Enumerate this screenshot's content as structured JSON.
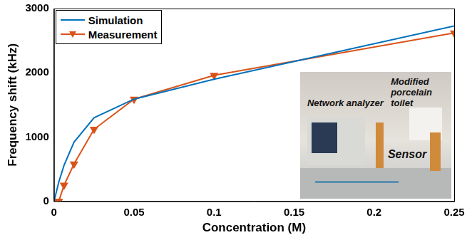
{
  "chart_data": {
    "type": "line",
    "x_label": "Concentration (M)",
    "y_label": "Frequency shift (kHz)",
    "x": [
      0,
      0.003,
      0.00625,
      0.0125,
      0.025,
      0.05,
      0.1,
      0.25
    ],
    "series": [
      {
        "name": "Simulation",
        "color": "#0072bd",
        "marker": "none",
        "line_style": "solid",
        "values": [
          0,
          300,
          560,
          920,
          1300,
          1590,
          1900,
          2730
        ]
      },
      {
        "name": "Measurement",
        "color": "#d95319",
        "marker": "triangle-down",
        "line_style": "solid",
        "values": [
          0,
          0,
          250,
          580,
          1120,
          1590,
          1960,
          2620
        ]
      }
    ],
    "xlim": [
      0,
      0.25
    ],
    "xticks": [
      0,
      0.05,
      0.1,
      0.15,
      0.2,
      0.25
    ],
    "ylim": [
      0,
      3000
    ],
    "yticks": [
      0,
      1000,
      2000,
      3000
    ],
    "grid": false,
    "legend": "top-left",
    "annotations": [
      "Network analyzer",
      "Modified porcelain toilet",
      "Sensor"
    ]
  }
}
